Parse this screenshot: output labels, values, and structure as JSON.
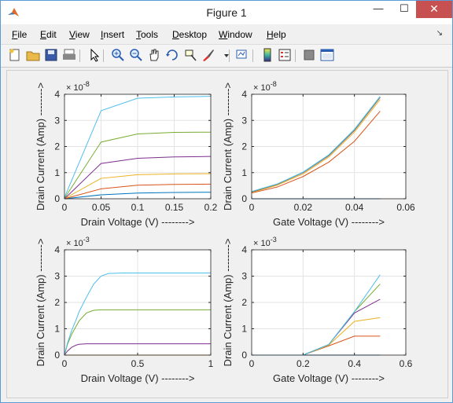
{
  "window": {
    "title": "Figure 1",
    "controls": {
      "minimize": "—",
      "maximize": "☐",
      "close": "✕"
    }
  },
  "menu": [
    {
      "label": "File",
      "accel": "F",
      "rest": "ile"
    },
    {
      "label": "Edit",
      "accel": "E",
      "rest": "dit"
    },
    {
      "label": "View",
      "accel": "V",
      "rest": "iew"
    },
    {
      "label": "Insert",
      "accel": "I",
      "rest": "nsert"
    },
    {
      "label": "Tools",
      "accel": "T",
      "rest": "ools"
    },
    {
      "label": "Desktop",
      "accel": "D",
      "rest": "esktop"
    },
    {
      "label": "Window",
      "accel": "W",
      "rest": "indow"
    },
    {
      "label": "Help",
      "accel": "H",
      "rest": "elp"
    }
  ],
  "toolbar": [
    "new-figure-icon",
    "open-folder-icon",
    "save-icon",
    "print-icon",
    "pointer-icon",
    "zoom-in-icon",
    "zoom-out-icon",
    "pan-hand-icon",
    "rotate-3d-icon",
    "data-cursor-icon",
    "brush-icon",
    "brush-dropdown-icon",
    "link-plot-icon",
    "colorbar-icon",
    "legend-icon",
    "hide-plot-tools-icon",
    "show-plot-tools-icon"
  ],
  "colors": {
    "blue": "#0072bd",
    "orange": "#d95319",
    "yellow": "#edb120",
    "purple": "#7e2f8e",
    "green": "#77ac30",
    "cyan": "#4dbeee",
    "grid": "#e3e3e3",
    "axis": "#262626"
  },
  "chart_data": [
    {
      "type": "line",
      "xlabel": "Drain Voltage (V) -------->",
      "ylabel": "Drain Current (Amp) -------->",
      "exponent": "× 10",
      "exponent_power": "-8",
      "xlim": [
        0,
        0.2
      ],
      "ylim": [
        0,
        4
      ],
      "xticks": [
        0,
        0.05,
        0.1,
        0.15,
        0.2
      ],
      "xtick_labels": [
        "0",
        "0.05",
        "0.1",
        "0.15",
        "0.2"
      ],
      "yticks": [
        0,
        1,
        2,
        3,
        4
      ],
      "ytick_labels": [
        "0",
        "1",
        "2",
        "3",
        "4"
      ],
      "grid": true,
      "x": [
        0,
        0.05,
        0.1,
        0.15,
        0.2
      ],
      "series": [
        {
          "color": "blue",
          "values": [
            0,
            0.15,
            0.22,
            0.24,
            0.25
          ]
        },
        {
          "color": "orange",
          "values": [
            0,
            0.38,
            0.52,
            0.55,
            0.56
          ]
        },
        {
          "color": "yellow",
          "values": [
            0,
            0.78,
            0.92,
            0.95,
            0.96
          ]
        },
        {
          "color": "purple",
          "values": [
            0,
            1.35,
            1.55,
            1.6,
            1.62
          ]
        },
        {
          "color": "green",
          "values": [
            0.02,
            2.17,
            2.48,
            2.54,
            2.55
          ]
        },
        {
          "color": "cyan",
          "values": [
            0.05,
            3.37,
            3.85,
            3.9,
            3.92
          ]
        }
      ]
    },
    {
      "type": "line",
      "xlabel": "Gate Voltage (V) -------->",
      "ylabel": "Drain Current (Amp) -------->",
      "exponent": "× 10",
      "exponent_power": "-8",
      "xlim": [
        0,
        0.06
      ],
      "ylim": [
        0,
        4
      ],
      "xticks": [
        0,
        0.02,
        0.04,
        0.06
      ],
      "xtick_labels": [
        "0",
        "0.02",
        "0.04",
        "0.06"
      ],
      "yticks": [
        0,
        1,
        2,
        3,
        4
      ],
      "ytick_labels": [
        "0",
        "1",
        "2",
        "3",
        "4"
      ],
      "grid": true,
      "x": [
        0,
        0.01,
        0.02,
        0.03,
        0.04,
        0.05
      ],
      "series": [
        {
          "color": "blue",
          "values": [
            0,
            0,
            0,
            0,
            0,
            0
          ]
        },
        {
          "color": "orange",
          "values": [
            0.22,
            0.45,
            0.85,
            1.4,
            2.2,
            3.35
          ]
        },
        {
          "color": "yellow",
          "values": [
            0.24,
            0.52,
            0.95,
            1.6,
            2.55,
            3.8
          ]
        },
        {
          "color": "purple",
          "values": [
            0.26,
            0.55,
            1.0,
            1.65,
            2.62,
            3.88
          ]
        },
        {
          "color": "green",
          "values": [
            0.27,
            0.56,
            1.01,
            1.67,
            2.64,
            3.9
          ]
        },
        {
          "color": "cyan",
          "values": [
            0.28,
            0.57,
            1.02,
            1.68,
            2.66,
            3.92
          ]
        }
      ]
    },
    {
      "type": "line",
      "xlabel": "Drain Voltage (V) -------->",
      "ylabel": "Drain Current (Amp) -------->",
      "exponent": "× 10",
      "exponent_power": "-3",
      "xlim": [
        0,
        1
      ],
      "ylim": [
        0,
        4
      ],
      "xticks": [
        0,
        0.5,
        1
      ],
      "xtick_labels": [
        "0",
        "0.5",
        "1"
      ],
      "yticks": [
        0,
        1,
        2,
        3,
        4
      ],
      "ytick_labels": [
        "0",
        "1",
        "2",
        "3",
        "4"
      ],
      "grid": true,
      "x": [
        0,
        0.02,
        0.05,
        0.08,
        0.1,
        0.15,
        0.2,
        0.25,
        0.3,
        0.4,
        0.5,
        1.0
      ],
      "series": [
        {
          "color": "blue",
          "values": [
            0,
            0,
            0,
            0,
            0,
            0,
            0,
            0,
            0,
            0,
            0,
            0
          ]
        },
        {
          "color": "orange",
          "values": [
            0,
            0,
            0,
            0,
            0,
            0,
            0,
            0,
            0,
            0,
            0,
            0
          ]
        },
        {
          "color": "yellow",
          "values": [
            0,
            0,
            0,
            0,
            0,
            0,
            0,
            0,
            0,
            0,
            0,
            0
          ]
        },
        {
          "color": "purple",
          "values": [
            0,
            0.15,
            0.3,
            0.38,
            0.41,
            0.43,
            0.43,
            0.43,
            0.43,
            0.43,
            0.43,
            0.43
          ]
        },
        {
          "color": "green",
          "values": [
            0,
            0.4,
            0.8,
            1.1,
            1.3,
            1.6,
            1.7,
            1.72,
            1.72,
            1.72,
            1.72,
            1.72
          ]
        },
        {
          "color": "cyan",
          "values": [
            0,
            0.45,
            0.95,
            1.35,
            1.65,
            2.2,
            2.7,
            3.0,
            3.1,
            3.12,
            3.12,
            3.12
          ]
        }
      ]
    },
    {
      "type": "line",
      "xlabel": "Gate Voltage (V) -------->",
      "ylabel": "Drain Current (Amp) -------->",
      "exponent": "× 10",
      "exponent_power": "-3",
      "xlim": [
        0,
        0.6
      ],
      "ylim": [
        0,
        4
      ],
      "xticks": [
        0,
        0.2,
        0.4,
        0.6
      ],
      "xtick_labels": [
        "0",
        "0.2",
        "0.4",
        "0.6"
      ],
      "yticks": [
        0,
        1,
        2,
        3,
        4
      ],
      "ytick_labels": [
        "0",
        "1",
        "2",
        "3",
        "4"
      ],
      "grid": true,
      "x": [
        0,
        0.1,
        0.2,
        0.3,
        0.4,
        0.5
      ],
      "series": [
        {
          "color": "blue",
          "values": [
            0,
            0,
            0,
            0,
            0,
            0
          ]
        },
        {
          "color": "orange",
          "values": [
            0,
            0,
            0,
            0.35,
            0.72,
            0.72
          ]
        },
        {
          "color": "yellow",
          "values": [
            0,
            0,
            0,
            0.38,
            1.28,
            1.42
          ]
        },
        {
          "color": "purple",
          "values": [
            0,
            0,
            0,
            0.4,
            1.6,
            2.12
          ]
        },
        {
          "color": "green",
          "values": [
            0,
            0,
            0,
            0.4,
            1.65,
            2.7
          ]
        },
        {
          "color": "cyan",
          "values": [
            0,
            0,
            0,
            0.4,
            1.65,
            3.05
          ]
        }
      ]
    }
  ]
}
